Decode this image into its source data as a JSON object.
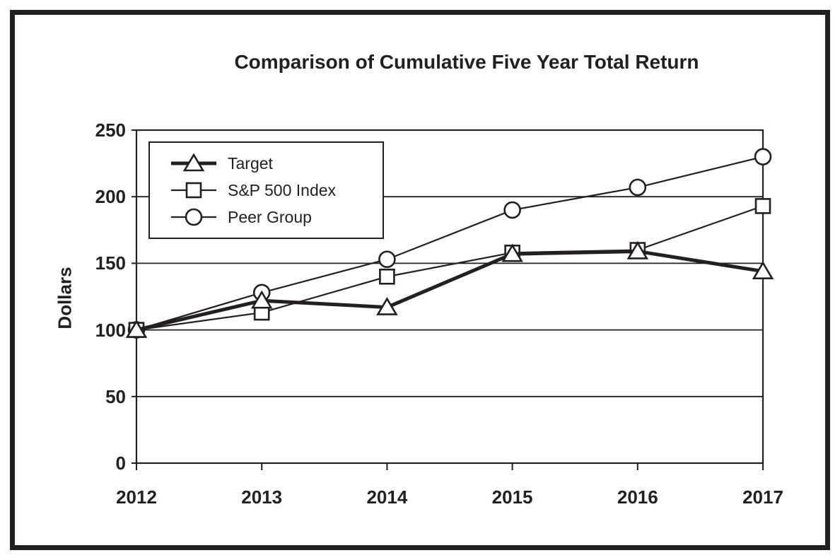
{
  "chart_data": {
    "type": "line",
    "title": "Comparison of Cumulative Five Year Total Return",
    "ylabel": "Dollars",
    "xlabel": "",
    "categories": [
      "2012",
      "2013",
      "2014",
      "2015",
      "2016",
      "2017"
    ],
    "ylim": [
      0,
      250
    ],
    "yticks": [
      0,
      50,
      100,
      150,
      200,
      250
    ],
    "grid": "horizontal",
    "legend_position": "inside-top-left",
    "line_color": "#231f20",
    "marker_fill": "#ffffff",
    "series": [
      {
        "name": "Target",
        "marker": "triangle",
        "line_style": "thick",
        "values": [
          100,
          122,
          117,
          157,
          159,
          144
        ]
      },
      {
        "name": "S&P 500 Index",
        "marker": "square",
        "line_style": "thin",
        "values": [
          100,
          113,
          140,
          158,
          160,
          193
        ]
      },
      {
        "name": "Peer Group",
        "marker": "circle",
        "line_style": "thin",
        "values": [
          100,
          128,
          153,
          190,
          207,
          230
        ]
      }
    ]
  }
}
